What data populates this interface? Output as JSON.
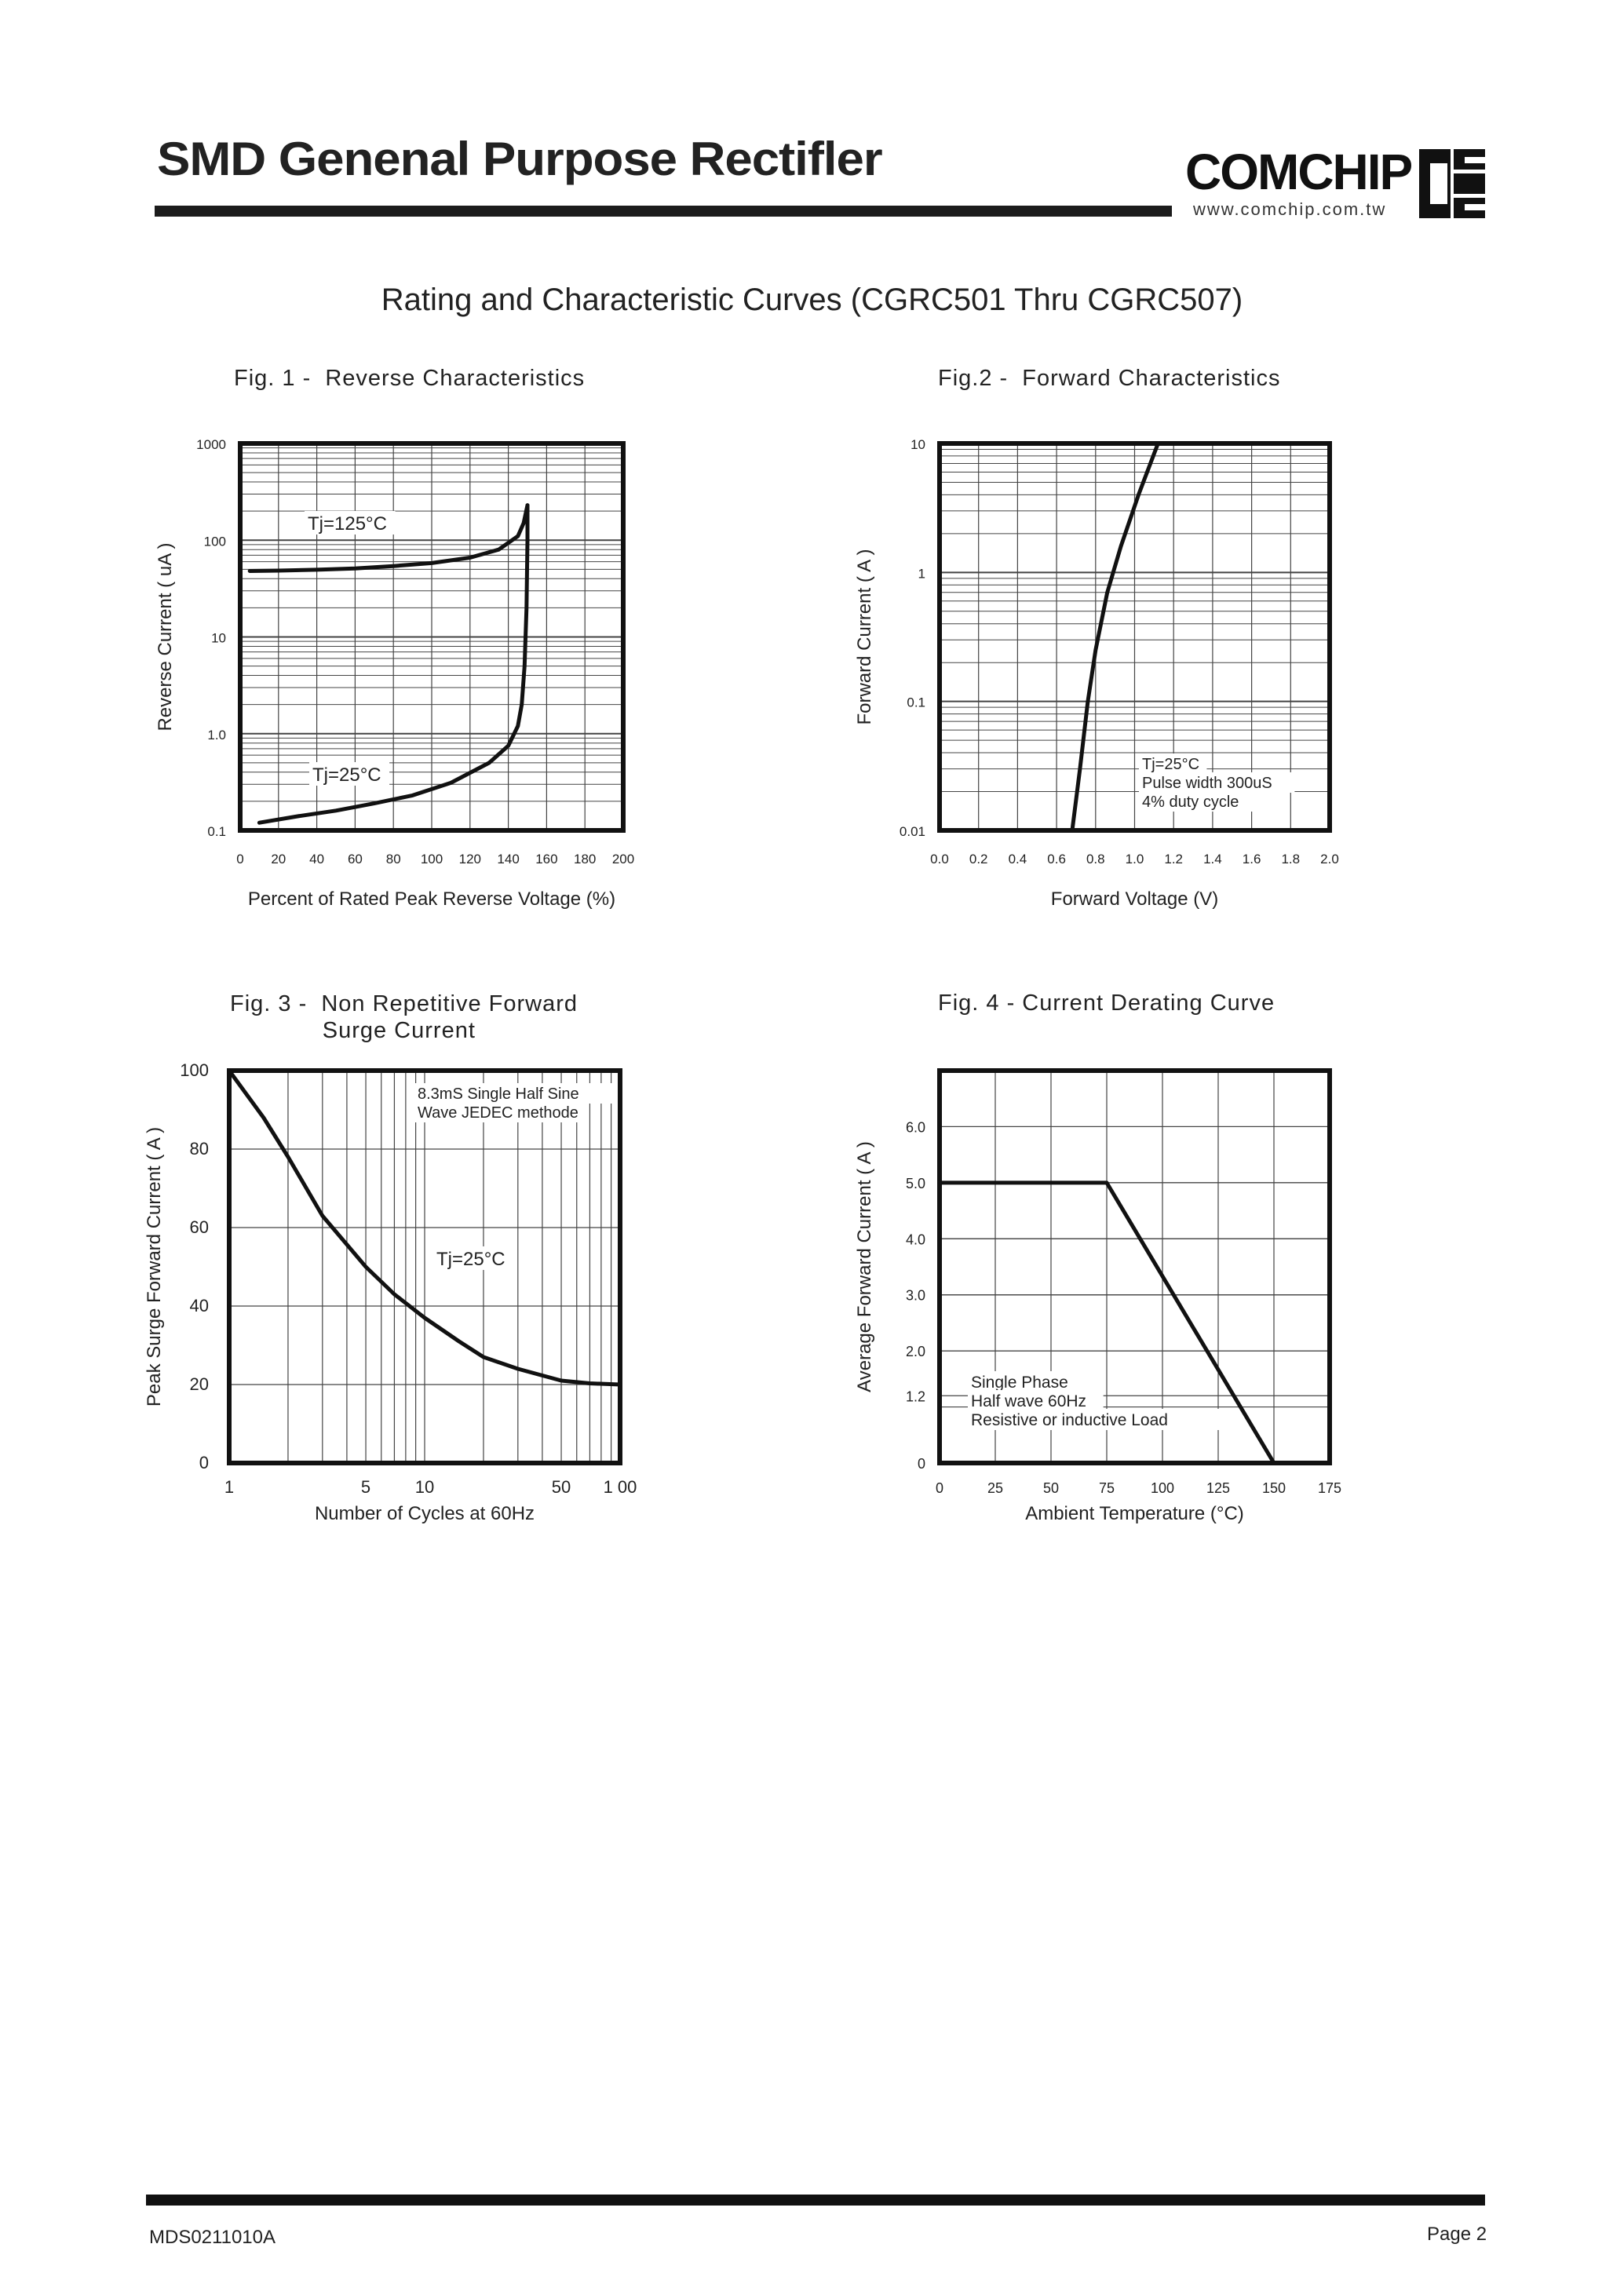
{
  "header": {
    "title": "SMD Genenal Purpose Rectifler",
    "brand": "COMCHIP",
    "url": "www.comchip.com.tw"
  },
  "page_heading": "Rating and Characteristic Curves (CGRC501 Thru CGRC507)",
  "footer": {
    "doc_id": "MDS0211010A",
    "page": "Page 2"
  },
  "chart_data": [
    {
      "type": "line",
      "title": "Fig. 1 -  Reverse Characteristics",
      "xlabel": "Percent of Rated Peak Reverse Voltage (%)",
      "ylabel": "Reverse Current ( uA )",
      "xlim": [
        0,
        200
      ],
      "ylim": [
        0.1,
        1000
      ],
      "yscale": "log",
      "x_ticks": [
        "0",
        "20",
        "40",
        "60",
        "80",
        "100",
        "120",
        "140",
        "160",
        "180",
        "200"
      ],
      "y_ticks": [
        "0.1",
        "1.0",
        "10",
        "100",
        "1000"
      ],
      "grid": true,
      "series": [
        {
          "name": "Tj=125°C",
          "x": [
            5,
            20,
            40,
            60,
            80,
            100,
            120,
            135,
            145,
            148,
            150
          ],
          "y": [
            48,
            48.5,
            49.5,
            51,
            54,
            58,
            66,
            80,
            110,
            150,
            230
          ]
        },
        {
          "name": "Tj=25°C",
          "x": [
            10,
            30,
            50,
            70,
            90,
            110,
            130,
            140,
            145,
            147,
            148.5,
            149.5,
            150,
            150
          ],
          "y": [
            0.12,
            0.14,
            0.16,
            0.19,
            0.23,
            0.31,
            0.5,
            0.75,
            1.2,
            2,
            5,
            20,
            100,
            230
          ]
        }
      ],
      "annotations": [
        "Tj=125°C",
        "Tj=25°C"
      ]
    },
    {
      "type": "line",
      "title": "Fig.2 -  Forward Characteristics",
      "xlabel": "Forward Voltage (V)",
      "ylabel": "Forward Current ( A )",
      "xlim": [
        0.0,
        2.0
      ],
      "ylim": [
        0.01,
        10
      ],
      "yscale": "log",
      "x_ticks": [
        "0.0",
        "0.2",
        "0.4",
        "0.6",
        "0.8",
        "1.0",
        "1.2",
        "1.4",
        "1.6",
        "1.8",
        "2.0"
      ],
      "y_ticks": [
        "0.01",
        "0.1",
        "1",
        "10"
      ],
      "grid": true,
      "series": [
        {
          "name": "Tj=25°C",
          "x": [
            0.68,
            0.72,
            0.76,
            0.8,
            0.86,
            0.93,
            1.02,
            1.12
          ],
          "y": [
            0.01,
            0.03,
            0.1,
            0.25,
            0.7,
            1.6,
            4,
            10
          ]
        }
      ],
      "annotations": [
        "Tj=25°C",
        "Pulse width 300uS",
        "4% duty cycle"
      ]
    },
    {
      "type": "line",
      "title": "Fig. 3 -  Non Repetitive Forward\n             Surge Current",
      "xlabel": "Number of Cycles at 60Hz",
      "ylabel": "Peak Surge Forward Current ( A )",
      "xlim": [
        1,
        100
      ],
      "xscale": "log",
      "ylim": [
        0,
        100
      ],
      "x_ticks": [
        "1",
        "5",
        "10",
        "50",
        "1 00"
      ],
      "y_ticks": [
        "0",
        "20",
        "40",
        "60",
        "80",
        "100"
      ],
      "grid": true,
      "series": [
        {
          "name": "Tj=25°C",
          "x": [
            1,
            1.5,
            2,
            3,
            5,
            7,
            10,
            15,
            20,
            30,
            50,
            70,
            100
          ],
          "y": [
            100,
            88,
            78,
            63,
            50,
            43,
            37,
            31,
            27,
            24,
            21,
            20.3,
            20
          ]
        }
      ],
      "annotations": [
        "8.3mS Single Half Sine",
        "Wave JEDEC methode",
        "Tj=25°C"
      ]
    },
    {
      "type": "line",
      "title": "Fig. 4 - Current Derating Curve",
      "xlabel": "Ambient Temperature (°C)",
      "ylabel": "Average Forward Current ( A )",
      "xlim": [
        0,
        175
      ],
      "ylim": [
        0,
        7
      ],
      "x_ticks": [
        "0",
        "25",
        "50",
        "75",
        "100",
        "125",
        "150",
        "175"
      ],
      "y_ticks": [
        "0",
        "1.2",
        "2.0",
        "3.0",
        "4.0",
        "5.0",
        "6.0"
      ],
      "grid": true,
      "series": [
        {
          "name": "",
          "x": [
            0,
            75,
            150
          ],
          "y": [
            5.0,
            5.0,
            0
          ]
        }
      ],
      "annotations": [
        "Single Phase",
        "Half wave 60Hz",
        "Resistive or inductive Load"
      ]
    }
  ]
}
